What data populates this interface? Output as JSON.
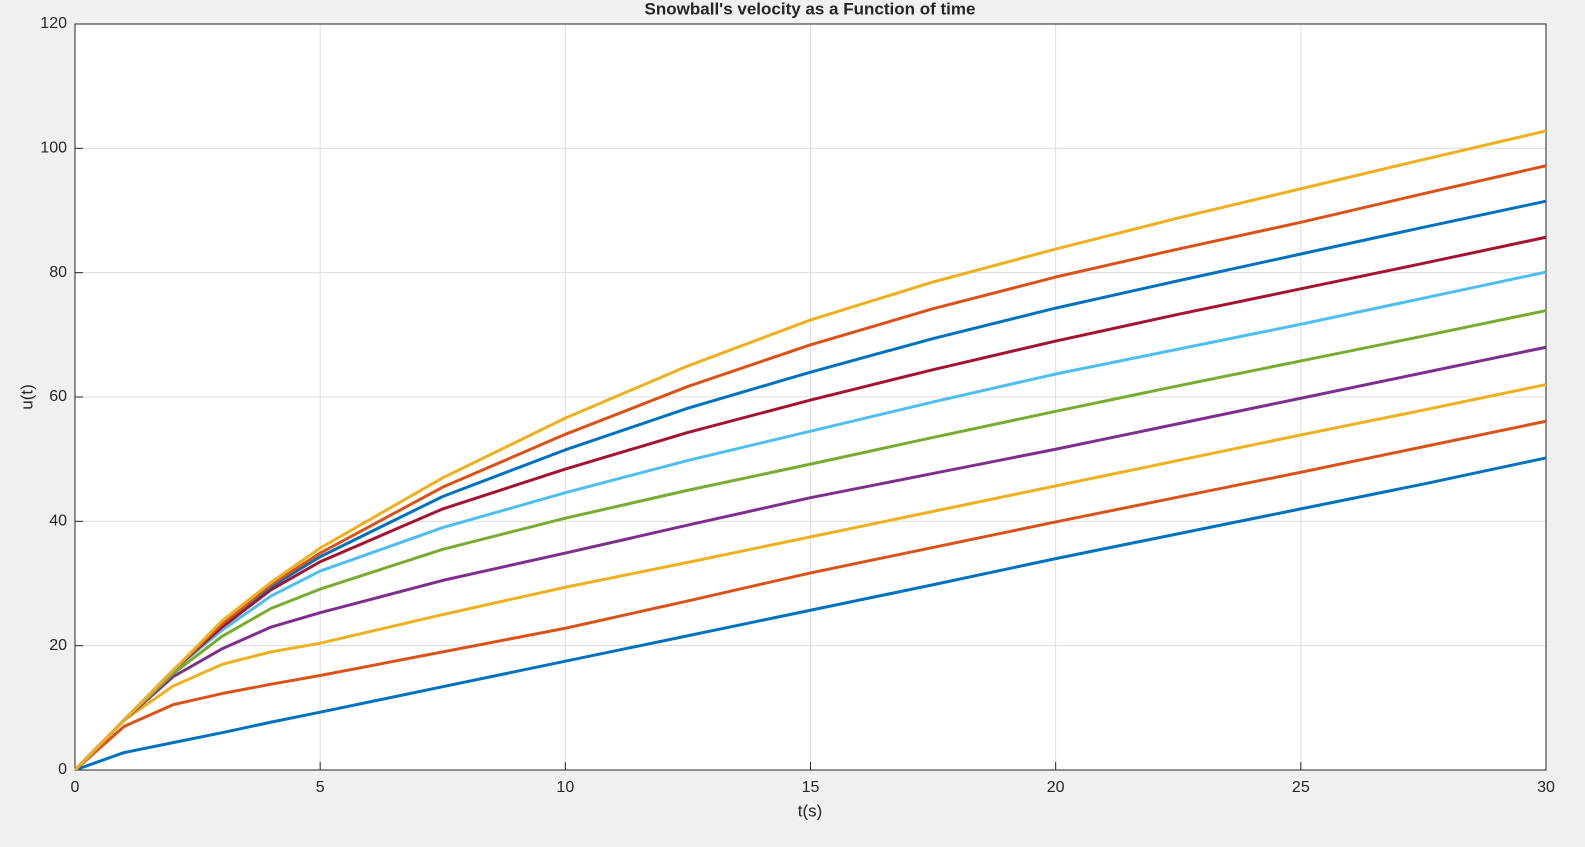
{
  "chart_data": {
    "type": "line",
    "title": "Snowball's velocity as a Function of time",
    "xlabel": "t(s)",
    "ylabel": "u(t)",
    "x": [
      0,
      1,
      2,
      3,
      4,
      5,
      7.5,
      10,
      12.5,
      15,
      17.5,
      20,
      22.5,
      25,
      27.5,
      30
    ],
    "xlim": [
      0,
      30
    ],
    "xticks": [
      0,
      5,
      10,
      15,
      20,
      25,
      30
    ],
    "ylim": [
      0,
      120
    ],
    "yticks": [
      0,
      20,
      40,
      60,
      80,
      100,
      120
    ],
    "grid": true,
    "series": [
      {
        "color": "#0072BD",
        "values": [
          0,
          2.8,
          4.4,
          6,
          7.7,
          9.3,
          13.4,
          17.5,
          21.6,
          25.7,
          29.8,
          34,
          38,
          42,
          46,
          50.2
        ]
      },
      {
        "color": "#D95319",
        "values": [
          0,
          7,
          10.5,
          12.3,
          13.8,
          15.2,
          19,
          22.8,
          27.2,
          31.7,
          35.8,
          39.9,
          43.9,
          47.9,
          52,
          56.1
        ]
      },
      {
        "color": "#EDB120",
        "values": [
          0,
          8,
          13.5,
          17,
          19,
          20.4,
          25,
          29.4,
          33.4,
          37.5,
          41.6,
          45.7,
          49.8,
          53.9,
          57.9,
          62
        ]
      },
      {
        "color": "#7E2F8E",
        "values": [
          0,
          8,
          15,
          19.5,
          23,
          25.3,
          30.5,
          34.9,
          39.4,
          43.8,
          47.7,
          51.6,
          55.7,
          59.8,
          63.9,
          68
        ]
      },
      {
        "color": "#77AC30",
        "values": [
          0,
          8,
          15.5,
          21.5,
          26,
          29.1,
          35.5,
          40.5,
          45,
          49.2,
          53.5,
          57.7,
          61.8,
          65.8,
          69.8,
          73.9
        ]
      },
      {
        "color": "#4DBEEE",
        "values": [
          0,
          8,
          16,
          22.5,
          28,
          32,
          39,
          44.6,
          49.8,
          54.5,
          59.2,
          63.7,
          67.7,
          71.7,
          75.9,
          80.1
        ]
      },
      {
        "color": "#A2142F",
        "values": [
          0,
          8,
          16,
          23,
          29,
          33.5,
          42,
          48.4,
          54.3,
          59.5,
          64.4,
          69,
          73.3,
          77.4,
          81.5,
          85.7
        ]
      },
      {
        "color": "#0072BD",
        "values": [
          0,
          8,
          16,
          23.5,
          29.5,
          34.3,
          44,
          51.5,
          58.2,
          64,
          69.4,
          74.3,
          78.7,
          83,
          87.3,
          91.5
        ]
      },
      {
        "color": "#D95319",
        "values": [
          0,
          8,
          16,
          23.5,
          29.8,
          34.9,
          45.5,
          54,
          61.7,
          68.4,
          74.2,
          79.3,
          83.8,
          88.1,
          92.7,
          97.2
        ]
      },
      {
        "color": "#EDB120",
        "values": [
          0,
          8,
          16,
          24,
          30.2,
          35.7,
          47,
          56.6,
          65,
          72.4,
          78.5,
          83.8,
          88.8,
          93.5,
          98.2,
          102.8
        ]
      }
    ]
  }
}
